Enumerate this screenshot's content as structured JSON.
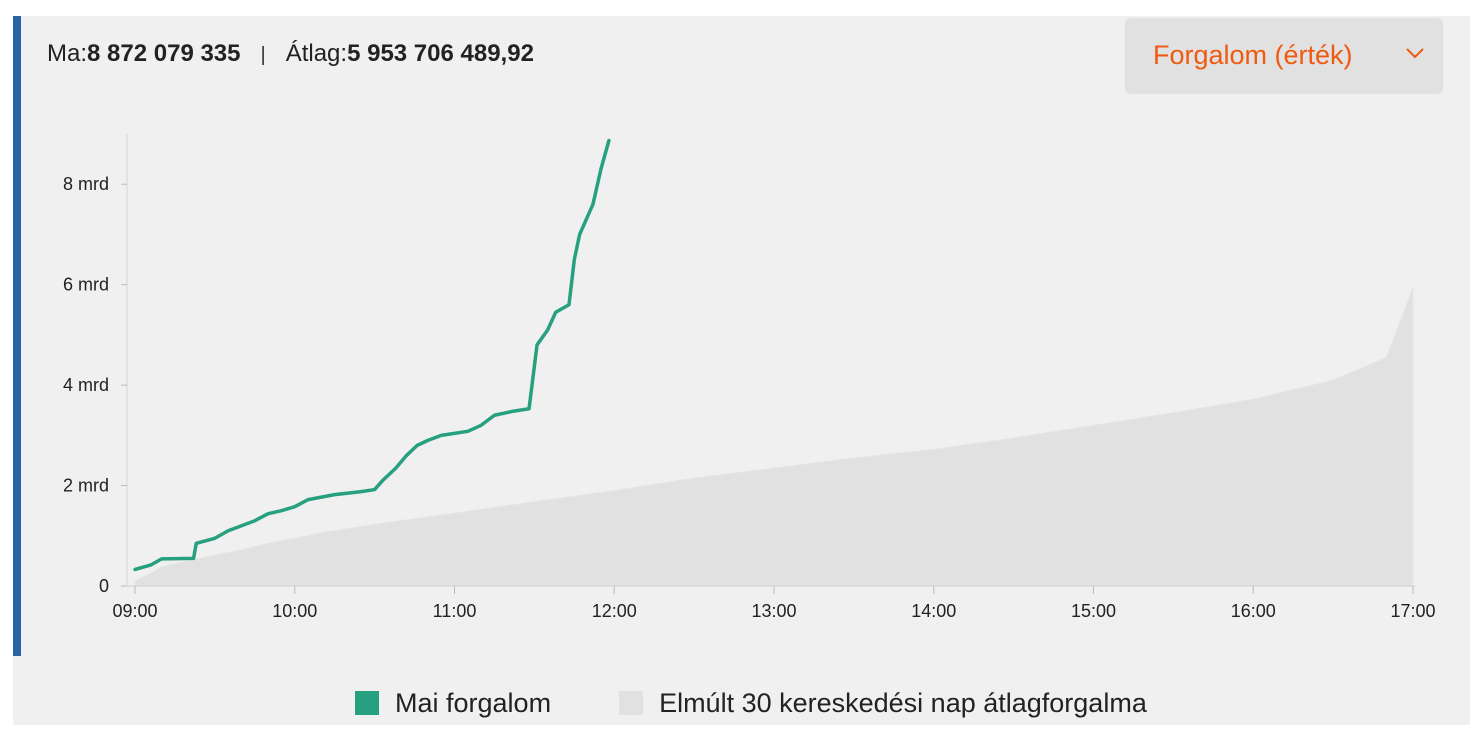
{
  "summary": {
    "today_label": "Ma:",
    "today_value": "8 872 079 335",
    "separator": "|",
    "avg_label": "Átlag:",
    "avg_value": "5 953 706 489,92"
  },
  "dropdown": {
    "selected": "Forgalom (érték)",
    "icon": "chevron-down-icon"
  },
  "colors": {
    "accent_bar": "#2a62a3",
    "today_series": "#26a07f",
    "avg_series": "#e1e1e1",
    "dropdown_text": "#ef5a10"
  },
  "chart_data": {
    "type": "line",
    "x_unit": "time",
    "y_unit": "HUF",
    "xlim": [
      "09:00",
      "17:00"
    ],
    "ylim": [
      0,
      9000000000
    ],
    "x_ticks": [
      "09:00",
      "10:00",
      "11:00",
      "12:00",
      "13:00",
      "14:00",
      "15:00",
      "16:00",
      "17:00"
    ],
    "y_ticks": [
      {
        "value": 0,
        "label": "0"
      },
      {
        "value": 2000000000,
        "label": "2 mrd"
      },
      {
        "value": 4000000000,
        "label": "4 mrd"
      },
      {
        "value": 6000000000,
        "label": "6 mrd"
      },
      {
        "value": 8000000000,
        "label": "8 mrd"
      }
    ],
    "legend_position": "bottom",
    "series": [
      {
        "name": "Mai forgalom",
        "style": "line",
        "color": "#26a07f",
        "points": [
          [
            "09:00",
            330000000
          ],
          [
            "09:06",
            420000000
          ],
          [
            "09:10",
            540000000
          ],
          [
            "09:22",
            550000000
          ],
          [
            "09:23",
            850000000
          ],
          [
            "09:30",
            950000000
          ],
          [
            "09:35",
            1100000000
          ],
          [
            "09:40",
            1200000000
          ],
          [
            "09:45",
            1300000000
          ],
          [
            "09:50",
            1440000000
          ],
          [
            "09:55",
            1500000000
          ],
          [
            "10:00",
            1580000000
          ],
          [
            "10:05",
            1720000000
          ],
          [
            "10:10",
            1770000000
          ],
          [
            "10:15",
            1820000000
          ],
          [
            "10:20",
            1850000000
          ],
          [
            "10:25",
            1880000000
          ],
          [
            "10:30",
            1920000000
          ],
          [
            "10:33",
            2100000000
          ],
          [
            "10:38",
            2350000000
          ],
          [
            "10:42",
            2600000000
          ],
          [
            "10:46",
            2800000000
          ],
          [
            "10:50",
            2900000000
          ],
          [
            "10:55",
            3000000000
          ],
          [
            "11:05",
            3080000000
          ],
          [
            "11:10",
            3200000000
          ],
          [
            "11:15",
            3400000000
          ],
          [
            "11:22",
            3480000000
          ],
          [
            "11:28",
            3530000000
          ],
          [
            "11:31",
            4800000000
          ],
          [
            "11:35",
            5100000000
          ],
          [
            "11:38",
            5450000000
          ],
          [
            "11:43",
            5600000000
          ],
          [
            "11:45",
            6500000000
          ],
          [
            "11:47",
            7000000000
          ],
          [
            "11:52",
            7600000000
          ],
          [
            "11:55",
            8300000000
          ],
          [
            "11:58",
            8870000000
          ]
        ]
      },
      {
        "name": "Elmúlt 30 kereskedési nap átlagforgalma",
        "style": "area",
        "color": "#e1e1e1",
        "points": [
          [
            "09:00",
            100000000
          ],
          [
            "09:05",
            230000000
          ],
          [
            "09:10",
            380000000
          ],
          [
            "09:20",
            500000000
          ],
          [
            "09:30",
            620000000
          ],
          [
            "09:40",
            720000000
          ],
          [
            "09:50",
            850000000
          ],
          [
            "10:00",
            950000000
          ],
          [
            "10:10",
            1060000000
          ],
          [
            "10:30",
            1230000000
          ],
          [
            "11:00",
            1450000000
          ],
          [
            "11:30",
            1680000000
          ],
          [
            "12:00",
            1900000000
          ],
          [
            "12:30",
            2150000000
          ],
          [
            "13:00",
            2350000000
          ],
          [
            "13:30",
            2550000000
          ],
          [
            "14:00",
            2720000000
          ],
          [
            "14:30",
            2950000000
          ],
          [
            "15:00",
            3200000000
          ],
          [
            "15:30",
            3450000000
          ],
          [
            "16:00",
            3720000000
          ],
          [
            "16:30",
            4100000000
          ],
          [
            "16:50",
            4550000000
          ],
          [
            "17:00",
            5950000000
          ]
        ]
      }
    ]
  }
}
